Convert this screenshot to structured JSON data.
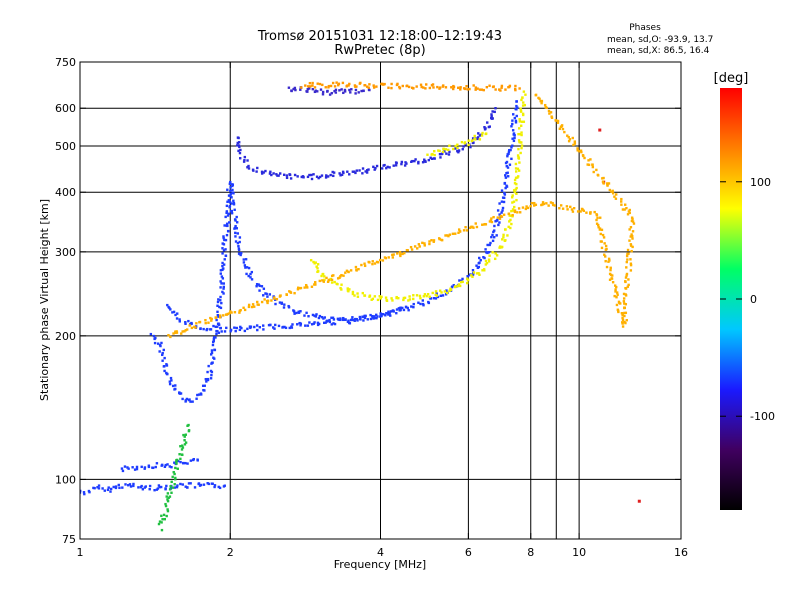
{
  "title": "Tromsø 20151031 12:18:00–12:19:43",
  "subtitle": "RwPretec (8p)",
  "phases": {
    "heading": "Phases",
    "line_o": "mean, sd,O: -93.9, 13.7",
    "line_x": "mean, sd,X:  86.5, 16.4"
  },
  "chart_data": {
    "type": "scatter",
    "title": "Tromsø 20151031 12:18:00–12:19:43",
    "subtitle": "RwPretec (8p)",
    "xlabel": "Frequency [MHz]",
    "ylabel": "Stationary phase Virtual Height [km]",
    "xscale": "log",
    "yscale": "log",
    "xlim": [
      1,
      16
    ],
    "ylim": [
      75,
      750
    ],
    "xticks": [
      1,
      2,
      4,
      6,
      8,
      10,
      16
    ],
    "xtick_labels": [
      "1",
      "2",
      "4",
      "6",
      "8",
      "10",
      "16"
    ],
    "xgrid": [
      2,
      4,
      6,
      8,
      10
    ],
    "xminor": [
      9
    ],
    "yticks": [
      75,
      100,
      200,
      300,
      400,
      500,
      600,
      750
    ],
    "ytick_labels": [
      "75",
      "100",
      "200",
      "300",
      "400",
      "500",
      "600",
      "750"
    ],
    "ygrid": [
      100,
      200,
      300,
      400,
      500,
      600
    ],
    "grid": true,
    "colorbar": {
      "label": "[deg]",
      "min": -180,
      "max": 180,
      "ticks": [
        100,
        0,
        -100
      ],
      "tick_labels": [
        "100",
        "0",
        "-100"
      ],
      "stops": [
        "#000000",
        "#400060",
        "#1a1aff",
        "#00c8ff",
        "#00ff64",
        "#ffff00",
        "#ff8000",
        "#ff0000"
      ]
    },
    "series": [
      {
        "color": "#1e3cff",
        "values": [
          [
            1.0,
            94
          ],
          [
            1.03,
            94
          ],
          [
            1.06,
            95
          ],
          [
            1.1,
            96
          ],
          [
            1.15,
            95
          ],
          [
            1.2,
            97
          ],
          [
            1.27,
            97
          ],
          [
            1.35,
            96
          ],
          [
            1.45,
            96
          ],
          [
            1.55,
            97
          ],
          [
            1.65,
            97
          ],
          [
            1.8,
            97
          ],
          [
            1.95,
            97
          ]
        ]
      },
      {
        "color": "#1e3cff",
        "values": [
          [
            1.22,
            105
          ],
          [
            1.3,
            106
          ],
          [
            1.4,
            107
          ],
          [
            1.5,
            107
          ],
          [
            1.58,
            108
          ],
          [
            1.65,
            109
          ],
          [
            1.72,
            110
          ]
        ]
      },
      {
        "color": "#1e3cff",
        "values": [
          [
            1.4,
            200
          ],
          [
            1.45,
            190
          ],
          [
            1.5,
            165
          ],
          [
            1.55,
            155
          ],
          [
            1.6,
            150
          ],
          [
            1.65,
            145
          ],
          [
            1.7,
            148
          ],
          [
            1.75,
            150
          ],
          [
            1.8,
            160
          ],
          [
            1.85,
            180
          ],
          [
            1.9,
            220
          ],
          [
            1.95,
            300
          ],
          [
            1.98,
            380
          ],
          [
            2.0,
            420
          ]
        ]
      },
      {
        "color": "#1e3cff",
        "values": [
          [
            1.5,
            230
          ],
          [
            1.6,
            215
          ],
          [
            1.75,
            208
          ],
          [
            1.95,
            206
          ],
          [
            2.05,
            206
          ],
          [
            2.3,
            208
          ],
          [
            2.6,
            210
          ],
          [
            3.0,
            212
          ],
          [
            3.5,
            216
          ],
          [
            4.0,
            221
          ],
          [
            4.5,
            228
          ],
          [
            5.0,
            237
          ],
          [
            5.5,
            250
          ],
          [
            6.0,
            265
          ],
          [
            6.4,
            290
          ],
          [
            6.8,
            330
          ],
          [
            7.0,
            380
          ],
          [
            7.2,
            450
          ],
          [
            7.4,
            550
          ],
          [
            7.5,
            620
          ]
        ]
      },
      {
        "color": "#1e3cff",
        "values": [
          [
            2.0,
            420
          ],
          [
            2.02,
            380
          ],
          [
            2.05,
            340
          ],
          [
            2.1,
            300
          ],
          [
            2.2,
            265
          ],
          [
            2.4,
            240
          ],
          [
            2.7,
            225
          ],
          [
            3.0,
            218
          ],
          [
            3.5,
            215
          ],
          [
            4.0,
            220
          ],
          [
            4.5,
            230
          ]
        ]
      },
      {
        "color": "#2a2adc",
        "values": [
          [
            2.05,
            520
          ],
          [
            2.1,
            480
          ],
          [
            2.2,
            450
          ],
          [
            2.4,
            435
          ],
          [
            2.7,
            430
          ],
          [
            3.0,
            432
          ],
          [
            3.5,
            440
          ],
          [
            4.0,
            450
          ],
          [
            4.5,
            460
          ],
          [
            5.0,
            470
          ],
          [
            5.5,
            485
          ],
          [
            6.0,
            500
          ],
          [
            6.5,
            540
          ],
          [
            6.8,
            600
          ]
        ]
      },
      {
        "color": "#3a2acc",
        "values": [
          [
            2.6,
            660
          ],
          [
            2.8,
            655
          ],
          [
            3.0,
            650
          ],
          [
            3.2,
            648
          ],
          [
            3.4,
            650
          ],
          [
            3.6,
            652
          ],
          [
            3.8,
            655
          ]
        ]
      },
      {
        "color": "#f0f000",
        "values": [
          [
            2.9,
            290
          ],
          [
            3.1,
            265
          ],
          [
            3.4,
            250
          ],
          [
            3.8,
            240
          ],
          [
            4.2,
            238
          ],
          [
            4.6,
            240
          ],
          [
            5.0,
            243
          ],
          [
            5.5,
            250
          ],
          [
            6.0,
            262
          ],
          [
            6.5,
            280
          ],
          [
            7.0,
            310
          ],
          [
            7.3,
            350
          ],
          [
            7.5,
            420
          ],
          [
            7.6,
            500
          ],
          [
            7.7,
            600
          ],
          [
            7.75,
            650
          ]
        ]
      },
      {
        "color": "#f0f000",
        "values": [
          [
            5.0,
            480
          ],
          [
            5.5,
            495
          ],
          [
            6.0,
            510
          ],
          [
            6.5,
            530
          ]
        ]
      },
      {
        "color": "#ff9900",
        "values": [
          [
            2.8,
            670
          ],
          [
            3.3,
            672
          ],
          [
            7.6,
            660
          ]
        ]
      },
      {
        "color": "#e02020",
        "values": [
          [
            11.2,
            420
          ],
          [
            13.2,
            90
          ],
          [
            11.0,
            540
          ]
        ]
      },
      {
        "color": "#20c040",
        "values": [
          [
            1.45,
            79
          ],
          [
            1.65,
            130
          ]
        ]
      },
      {
        "color": "#ffb000",
        "values": [
          [
            1.5,
            200
          ],
          [
            8.4,
            380
          ],
          [
            10.9,
            360
          ],
          [
            11.5,
            275
          ],
          [
            12.3,
            210
          ],
          [
            12.8,
            355
          ],
          [
            8.2,
            640
          ]
        ]
      }
    ]
  }
}
